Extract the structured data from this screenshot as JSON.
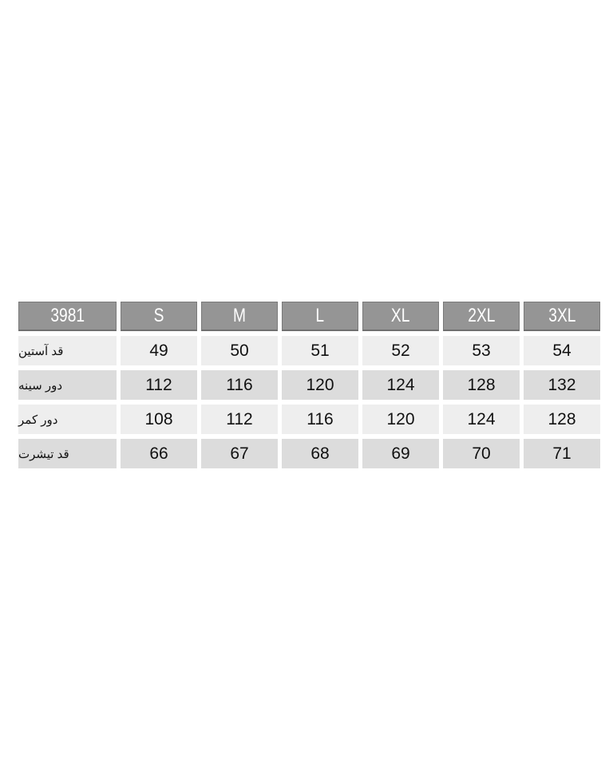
{
  "table": {
    "model_code": "3981",
    "sizes": [
      "S",
      "M",
      "L",
      "XL",
      "2XL",
      "3XL"
    ],
    "rows": [
      {
        "label": "قد آستین",
        "values": [
          "49",
          "50",
          "51",
          "52",
          "53",
          "54"
        ]
      },
      {
        "label": "دور سینه",
        "values": [
          "112",
          "116",
          "120",
          "124",
          "128",
          "132"
        ]
      },
      {
        "label": "دور کمر",
        "values": [
          "108",
          "112",
          "116",
          "120",
          "124",
          "128"
        ]
      },
      {
        "label": "قد تیشرت",
        "values": [
          "66",
          "67",
          "68",
          "69",
          "70",
          "71"
        ]
      }
    ]
  },
  "colors": {
    "header_bg": "#959595",
    "row_light": "#eeeeee",
    "row_dark": "#dcdcdc"
  }
}
